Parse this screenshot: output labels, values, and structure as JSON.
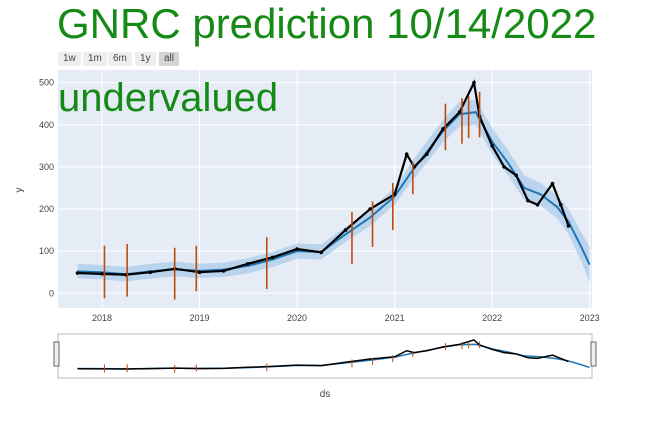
{
  "title": "GNRC prediction 10/14/2022",
  "verdict": "undervalued",
  "colors": {
    "title": "#168a16",
    "plot_bg": "#e5ecf6",
    "forecast": "#1f77b4",
    "band": "#aacbe9",
    "actual": "#000000",
    "changepoint": "#bf4a0a"
  },
  "range_selector": [
    {
      "label": "1w",
      "active": false
    },
    {
      "label": "1m",
      "active": false
    },
    {
      "label": "6m",
      "active": false
    },
    {
      "label": "1y",
      "active": false
    },
    {
      "label": "all",
      "active": true
    }
  ],
  "chart_data": {
    "type": "line",
    "title": "GNRC prediction 10/14/2022",
    "xlabel": "ds",
    "ylabel": "y",
    "xlim": [
      "2017-07-20",
      "2023-01-10"
    ],
    "ylim": [
      -35,
      530
    ],
    "yticks": [
      0,
      100,
      200,
      300,
      400,
      500
    ],
    "xticks": [
      "2018",
      "2019",
      "2020",
      "2021",
      "2022",
      "2023"
    ],
    "grid": true,
    "legend": "none",
    "rangeslider": true,
    "series": [
      {
        "role": "forecast",
        "x": [
          "2017-10-01",
          "2018-01-01",
          "2018-04-01",
          "2018-07-01",
          "2018-10-01",
          "2019-01-01",
          "2019-04-01",
          "2019-07-01",
          "2019-10-01",
          "2020-01-01",
          "2020-04-01",
          "2020-07-01",
          "2020-10-01",
          "2021-01-01",
          "2021-03-01",
          "2021-05-01",
          "2021-07-01",
          "2021-09-01",
          "2021-11-01",
          "2022-01-01",
          "2022-03-01",
          "2022-05-01",
          "2022-07-01",
          "2022-09-01",
          "2022-10-14",
          "2022-12-01",
          "2023-01-01"
        ],
        "y": [
          52,
          50,
          45,
          52,
          57,
          53,
          56,
          65,
          80,
          100,
          98,
          140,
          180,
          230,
          285,
          335,
          385,
          425,
          430,
          360,
          310,
          250,
          235,
          205,
          170,
          110,
          68
        ],
        "lower": [
          35,
          33,
          28,
          35,
          40,
          36,
          39,
          47,
          62,
          82,
          80,
          122,
          160,
          210,
          262,
          310,
          358,
          396,
          400,
          330,
          280,
          222,
          208,
          178,
          140,
          75,
          25
        ],
        "upper": [
          70,
          67,
          62,
          70,
          75,
          70,
          73,
          83,
          98,
          118,
          116,
          158,
          200,
          250,
          308,
          360,
          412,
          455,
          460,
          392,
          340,
          280,
          262,
          232,
          200,
          145,
          110
        ]
      },
      {
        "role": "actual",
        "x": [
          "2017-10-01",
          "2018-01-01",
          "2018-04-01",
          "2018-07-01",
          "2018-10-01",
          "2019-01-01",
          "2019-04-01",
          "2019-07-01",
          "2019-10-01",
          "2020-01-01",
          "2020-04-01",
          "2020-07-01",
          "2020-10-01",
          "2021-01-01",
          "2021-02-15",
          "2021-03-15",
          "2021-05-01",
          "2021-07-01",
          "2021-09-01",
          "2021-10-25",
          "2021-11-15",
          "2022-01-01",
          "2022-02-15",
          "2022-04-01",
          "2022-05-15",
          "2022-06-20",
          "2022-08-15",
          "2022-09-15",
          "2022-10-14"
        ],
        "y": [
          48,
          46,
          44,
          50,
          58,
          50,
          53,
          70,
          85,
          105,
          97,
          150,
          200,
          235,
          330,
          300,
          330,
          390,
          430,
          500,
          420,
          350,
          300,
          280,
          220,
          210,
          260,
          210,
          160
        ]
      }
    ],
    "changepoints": [
      {
        "x": "2018-01-10",
        "y0": -12,
        "y1": 113
      },
      {
        "x": "2018-04-05",
        "y0": -8,
        "y1": 117
      },
      {
        "x": "2018-09-30",
        "y0": -15,
        "y1": 108
      },
      {
        "x": "2018-12-20",
        "y0": 5,
        "y1": 113
      },
      {
        "x": "2019-09-10",
        "y0": 10,
        "y1": 133
      },
      {
        "x": "2020-07-25",
        "y0": 70,
        "y1": 193
      },
      {
        "x": "2020-10-10",
        "y0": 110,
        "y1": 218
      },
      {
        "x": "2020-12-25",
        "y0": 150,
        "y1": 262
      },
      {
        "x": "2021-03-10",
        "y0": 235,
        "y1": 312
      },
      {
        "x": "2021-07-10",
        "y0": 340,
        "y1": 450
      },
      {
        "x": "2021-09-10",
        "y0": 355,
        "y1": 463
      },
      {
        "x": "2021-10-05",
        "y0": 368,
        "y1": 468
      },
      {
        "x": "2021-11-15",
        "y0": 370,
        "y1": 478
      }
    ]
  }
}
